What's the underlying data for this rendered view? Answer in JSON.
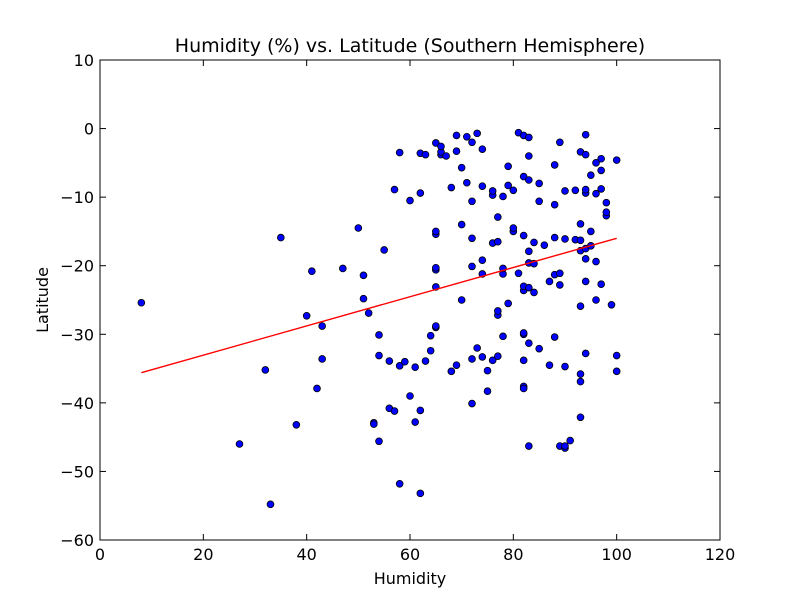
{
  "chart_data": {
    "type": "scatter",
    "title": "Humidity (%) vs. Latitude (Southern Hemisphere)",
    "xlabel": "Humidity",
    "ylabel": "Latitude",
    "xlim": [
      0,
      120
    ],
    "ylim": [
      -60,
      10
    ],
    "xticks": [
      0,
      20,
      40,
      60,
      80,
      100,
      120
    ],
    "yticks": [
      10,
      0,
      -10,
      -20,
      -30,
      -40,
      -50,
      -60
    ],
    "grid": false,
    "colors": {
      "points": "#0000ff",
      "regression": "#ff0000"
    },
    "regression": {
      "x": [
        8,
        100
      ],
      "y": [
        -35.6,
        -16.0
      ]
    },
    "points": [
      [
        8,
        -25.4
      ],
      [
        27,
        -46.0
      ],
      [
        32,
        -35.2
      ],
      [
        33,
        -54.8
      ],
      [
        35,
        -15.9
      ],
      [
        38,
        -43.2
      ],
      [
        40,
        -27.3
      ],
      [
        41,
        -20.8
      ],
      [
        42,
        -37.9
      ],
      [
        43,
        -33.6
      ],
      [
        43,
        -28.8
      ],
      [
        47,
        -20.4
      ],
      [
        50,
        -14.5
      ],
      [
        51,
        -21.4
      ],
      [
        51,
        -24.8
      ],
      [
        52,
        -26.9
      ],
      [
        53,
        -42.9
      ],
      [
        53,
        -43.1
      ],
      [
        54,
        -45.6
      ],
      [
        54,
        -33.1
      ],
      [
        54,
        -30.1
      ],
      [
        55,
        -17.7
      ],
      [
        56,
        -40.8
      ],
      [
        56,
        -33.9
      ],
      [
        57,
        -41.2
      ],
      [
        57,
        -8.9
      ],
      [
        58,
        -34.6
      ],
      [
        58,
        -51.8
      ],
      [
        58,
        -3.5
      ],
      [
        59,
        -34.0
      ],
      [
        60,
        -39.0
      ],
      [
        60,
        -10.5
      ],
      [
        61,
        -42.8
      ],
      [
        61,
        -34.8
      ],
      [
        62,
        -41.1
      ],
      [
        62,
        -53.2
      ],
      [
        62,
        -9.4
      ],
      [
        62,
        -3.6
      ],
      [
        63,
        -33.9
      ],
      [
        63,
        -3.8
      ],
      [
        64,
        -32.4
      ],
      [
        64,
        -30.2
      ],
      [
        65,
        -29.0
      ],
      [
        65,
        -28.8
      ],
      [
        65,
        -23.1
      ],
      [
        65,
        -20.6
      ],
      [
        65,
        -20.3
      ],
      [
        65,
        -15.4
      ],
      [
        65,
        -15.0
      ],
      [
        65,
        -2.1
      ],
      [
        66,
        -3.8
      ],
      [
        66,
        -3.4
      ],
      [
        66,
        -2.6
      ],
      [
        67,
        -4.0
      ],
      [
        68,
        -35.4
      ],
      [
        68,
        -8.6
      ],
      [
        69,
        -34.5
      ],
      [
        69,
        -3.3
      ],
      [
        69,
        -1.0
      ],
      [
        70,
        -25.0
      ],
      [
        70,
        -14.0
      ],
      [
        70,
        -5.7
      ],
      [
        71,
        -7.9
      ],
      [
        71,
        -1.2
      ],
      [
        72,
        -40.1
      ],
      [
        72,
        -33.6
      ],
      [
        72,
        -20.1
      ],
      [
        72,
        -16.0
      ],
      [
        72,
        -10.6
      ],
      [
        72,
        -2.0
      ],
      [
        73,
        -32.0
      ],
      [
        73,
        -0.7
      ],
      [
        74,
        -33.3
      ],
      [
        74,
        -21.2
      ],
      [
        74,
        -19.2
      ],
      [
        74,
        -8.4
      ],
      [
        74,
        -3.0
      ],
      [
        75,
        -38.3
      ],
      [
        75,
        -35.3
      ],
      [
        76,
        -33.8
      ],
      [
        76,
        -16.7
      ],
      [
        76,
        -9.7
      ],
      [
        76,
        -9.1
      ],
      [
        77,
        -33.2
      ],
      [
        77,
        -27.2
      ],
      [
        77,
        -26.6
      ],
      [
        77,
        -16.5
      ],
      [
        77,
        -12.9
      ],
      [
        78,
        -30.3
      ],
      [
        78,
        -21.2
      ],
      [
        78,
        -20.4
      ],
      [
        78,
        -9.9
      ],
      [
        79,
        -25.5
      ],
      [
        79,
        -8.3
      ],
      [
        79,
        -5.5
      ],
      [
        80,
        -15.0
      ],
      [
        80,
        -14.5
      ],
      [
        80,
        -9.0
      ],
      [
        81,
        -21.1
      ],
      [
        81,
        -0.6
      ],
      [
        82,
        -37.6
      ],
      [
        82,
        -37.9
      ],
      [
        82,
        -33.8
      ],
      [
        82,
        -30.0
      ],
      [
        82,
        -29.8
      ],
      [
        82,
        -23.6
      ],
      [
        82,
        -23.0
      ],
      [
        82,
        -15.6
      ],
      [
        82,
        -7.0
      ],
      [
        82,
        -1.0
      ],
      [
        83,
        -46.3
      ],
      [
        83,
        -31.3
      ],
      [
        83,
        -23.2
      ],
      [
        83,
        -19.6
      ],
      [
        83,
        -17.9
      ],
      [
        83,
        -7.5
      ],
      [
        83,
        -4.0
      ],
      [
        83,
        -1.3
      ],
      [
        84,
        -23.9
      ],
      [
        84,
        -19.7
      ],
      [
        84,
        -16.6
      ],
      [
        85,
        -32.1
      ],
      [
        85,
        -10.6
      ],
      [
        85,
        -8.0
      ],
      [
        86,
        -17.0
      ],
      [
        87,
        -34.5
      ],
      [
        87,
        -22.3
      ],
      [
        88,
        -30.4
      ],
      [
        88,
        -21.3
      ],
      [
        88,
        -15.9
      ],
      [
        88,
        -11.1
      ],
      [
        88,
        -5.3
      ],
      [
        89,
        -46.3
      ],
      [
        89,
        -22.8
      ],
      [
        89,
        -21.1
      ],
      [
        89,
        -2.0
      ],
      [
        90,
        -46.6
      ],
      [
        90,
        -46.3
      ],
      [
        90,
        -34.7
      ],
      [
        90,
        -16.1
      ],
      [
        90,
        -9.1
      ],
      [
        91,
        -45.5
      ],
      [
        92,
        -16.2
      ],
      [
        92,
        -9.0
      ],
      [
        93,
        -42.1
      ],
      [
        93,
        -36.9
      ],
      [
        93,
        -35.8
      ],
      [
        93,
        -25.9
      ],
      [
        93,
        -17.8
      ],
      [
        93,
        -16.3
      ],
      [
        93,
        -13.9
      ],
      [
        93,
        -3.4
      ],
      [
        94,
        -32.8
      ],
      [
        94,
        -22.3
      ],
      [
        94,
        -19.0
      ],
      [
        94,
        -17.5
      ],
      [
        94,
        -9.4
      ],
      [
        94,
        -8.9
      ],
      [
        94,
        -3.8
      ],
      [
        94,
        -0.9
      ],
      [
        95,
        -17.1
      ],
      [
        95,
        -15.0
      ],
      [
        95,
        -6.8
      ],
      [
        96,
        -25.0
      ],
      [
        96,
        -19.4
      ],
      [
        96,
        -9.5
      ],
      [
        96,
        -5.0
      ],
      [
        97,
        -22.7
      ],
      [
        97,
        -8.8
      ],
      [
        97,
        -6.1
      ],
      [
        97,
        -4.4
      ],
      [
        98,
        -12.7
      ],
      [
        98,
        -12.2
      ],
      [
        98,
        -10.8
      ],
      [
        99,
        -25.7
      ],
      [
        100,
        -35.4
      ],
      [
        100,
        -33.1
      ],
      [
        100,
        -4.6
      ]
    ]
  }
}
